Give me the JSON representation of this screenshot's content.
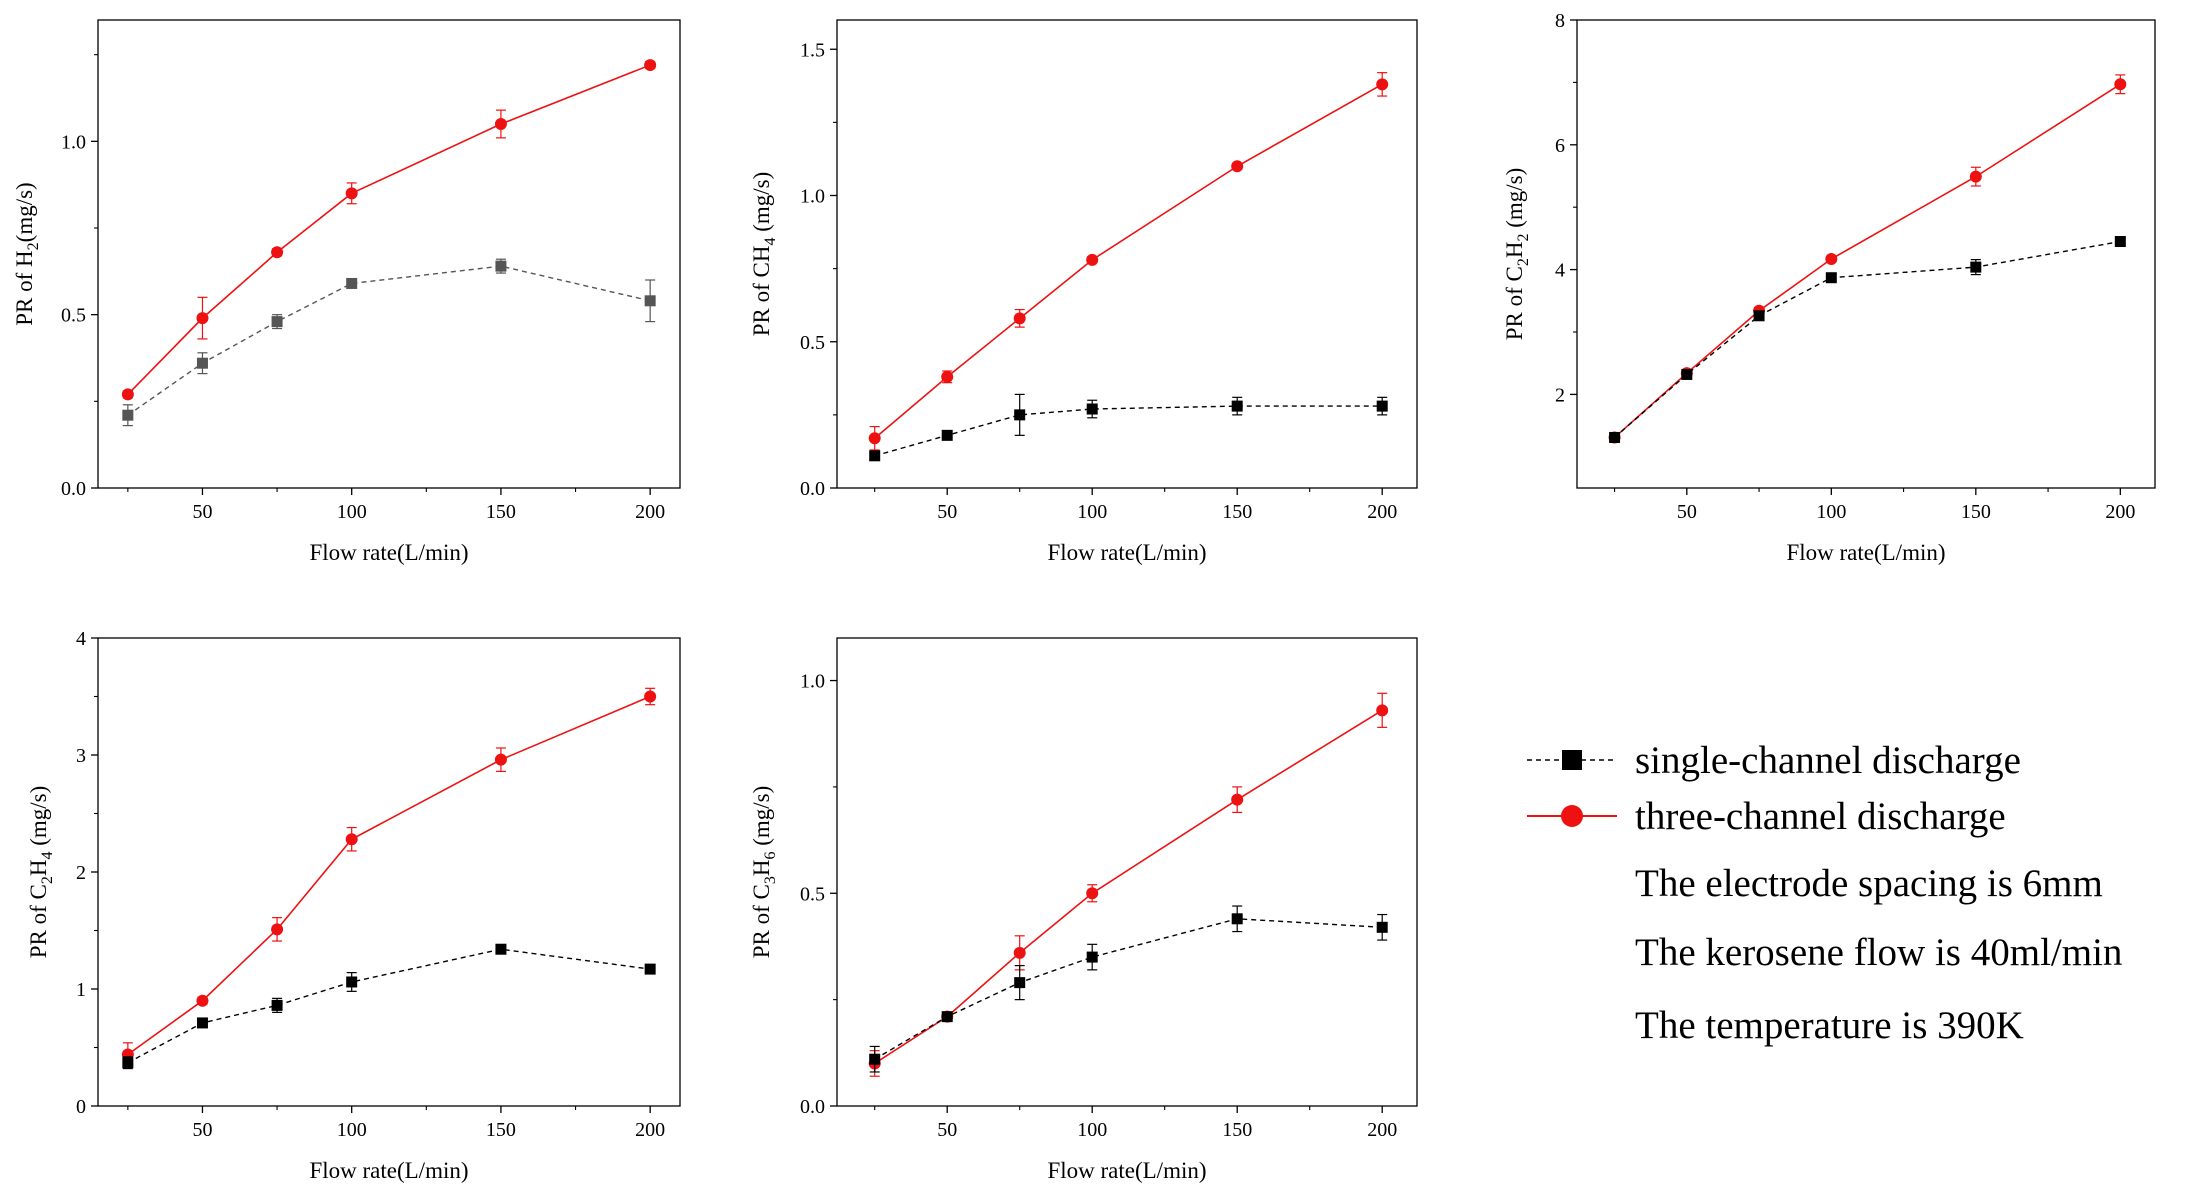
{
  "figure": {
    "legend": {
      "series": [
        {
          "name": "single-channel discharge",
          "color": "#000000",
          "marker": "square",
          "line": "dashed"
        },
        {
          "name": "three-channel discharge",
          "color": "#ee1111",
          "marker": "circle",
          "line": "solid"
        }
      ],
      "notes": [
        "The electrode spacing is 6mm",
        "The kerosene flow is 40ml/min",
        "The temperature is 390K"
      ]
    }
  },
  "chart_data": [
    {
      "type": "line",
      "title": "",
      "xlabel": "Flow rate(L/min)",
      "ylabel": "PR of H",
      "ylabel_sub": "2",
      "ylabel_tail": "(mg/s)",
      "x": [
        25,
        50,
        75,
        100,
        150,
        200
      ],
      "xlim": [
        15,
        210
      ],
      "ylim": [
        0.0,
        1.35
      ],
      "xticks": [
        50,
        100,
        150,
        200
      ],
      "yticks": [
        0.0,
        0.5,
        1.0
      ],
      "ytick_labels": [
        "0.0",
        "0.5",
        "1.0"
      ],
      "series": [
        {
          "name": "single-channel discharge",
          "values": [
            0.21,
            0.36,
            0.48,
            0.59,
            0.64,
            0.54
          ],
          "errors": [
            0.03,
            0.03,
            0.02,
            0.01,
            0.02,
            0.06
          ],
          "color": "#555555"
        },
        {
          "name": "three-channel discharge",
          "values": [
            0.27,
            0.49,
            0.68,
            0.85,
            1.05,
            1.22
          ],
          "errors": [
            0.01,
            0.06,
            0.01,
            0.03,
            0.04,
            0.01
          ],
          "color": "#ee1111"
        }
      ]
    },
    {
      "type": "line",
      "title": "",
      "xlabel": "Flow rate(L/min)",
      "ylabel": "PR of CH",
      "ylabel_sub": "4",
      "ylabel_tail": " (mg/s)",
      "x": [
        25,
        50,
        75,
        100,
        150,
        200
      ],
      "xlim": [
        12,
        212
      ],
      "ylim": [
        0.0,
        1.6
      ],
      "xticks": [
        50,
        100,
        150,
        200
      ],
      "yticks": [
        0.0,
        0.5,
        1.0,
        1.5
      ],
      "ytick_labels": [
        "0.0",
        "0.5",
        "1.0",
        "1.5"
      ],
      "series": [
        {
          "name": "single-channel discharge",
          "values": [
            0.11,
            0.18,
            0.25,
            0.27,
            0.28,
            0.28
          ],
          "errors": [
            0.01,
            0.01,
            0.07,
            0.03,
            0.03,
            0.03
          ],
          "color": "#000000"
        },
        {
          "name": "three-channel discharge",
          "values": [
            0.17,
            0.38,
            0.58,
            0.78,
            1.1,
            1.38
          ],
          "errors": [
            0.04,
            0.02,
            0.03,
            0.01,
            0.01,
            0.04
          ],
          "color": "#ee1111"
        }
      ]
    },
    {
      "type": "line",
      "title": "",
      "xlabel": "Flow rate(L/min)",
      "ylabel": "PR of C",
      "ylabel_sub": "2",
      "ylabel_mid": "H",
      "ylabel_sub2": "2",
      "ylabel_tail": "  (mg/s)",
      "x": [
        25,
        50,
        75,
        100,
        150,
        200
      ],
      "xlim": [
        12,
        212
      ],
      "ylim": [
        0.5,
        8.0
      ],
      "xticks": [
        50,
        100,
        150,
        200
      ],
      "yticks": [
        2,
        4,
        6,
        8
      ],
      "ytick_labels": [
        "2",
        "4",
        "6",
        "8"
      ],
      "series": [
        {
          "name": "single-channel discharge",
          "values": [
            1.31,
            2.32,
            3.26,
            3.87,
            4.04,
            4.45
          ],
          "errors": [
            0.03,
            0.04,
            0.06,
            0.05,
            0.12,
            0.05
          ],
          "color": "#000000"
        },
        {
          "name": "three-channel discharge",
          "values": [
            1.31,
            2.34,
            3.34,
            4.17,
            5.49,
            6.97
          ],
          "errors": [
            0.03,
            0.04,
            0.05,
            0.04,
            0.15,
            0.15
          ],
          "color": "#ee1111"
        }
      ]
    },
    {
      "type": "line",
      "title": "",
      "xlabel": "Flow rate(L/min)",
      "ylabel": "PR of C",
      "ylabel_sub": "2",
      "ylabel_mid": "H",
      "ylabel_sub2": "4",
      "ylabel_tail": " (mg/s)",
      "x": [
        25,
        50,
        75,
        100,
        150,
        200
      ],
      "xlim": [
        15,
        210
      ],
      "ylim": [
        0,
        4
      ],
      "xticks": [
        50,
        100,
        150,
        200
      ],
      "yticks": [
        0,
        1,
        2,
        3,
        4
      ],
      "ytick_labels": [
        "0",
        "1",
        "2",
        "3",
        "4"
      ],
      "series": [
        {
          "name": "single-channel discharge",
          "values": [
            0.37,
            0.71,
            0.86,
            1.06,
            1.34,
            1.17
          ],
          "errors": [
            0.05,
            0.03,
            0.06,
            0.08,
            0.03,
            0.03
          ],
          "color": "#000000"
        },
        {
          "name": "three-channel discharge",
          "values": [
            0.44,
            0.9,
            1.51,
            2.28,
            2.96,
            3.5
          ],
          "errors": [
            0.1,
            0.03,
            0.1,
            0.1,
            0.1,
            0.07
          ],
          "color": "#ee1111"
        }
      ]
    },
    {
      "type": "line",
      "title": "",
      "xlabel": "Flow rate(L/min)",
      "ylabel": "PR of C",
      "ylabel_sub": "3",
      "ylabel_mid": "H",
      "ylabel_sub2": "6",
      "ylabel_tail": " (mg/s)",
      "x": [
        25,
        50,
        75,
        100,
        150,
        200
      ],
      "xlim": [
        12,
        212
      ],
      "ylim": [
        0.0,
        1.1
      ],
      "xticks": [
        50,
        100,
        150,
        200
      ],
      "yticks": [
        0.0,
        0.5,
        1.0
      ],
      "ytick_labels": [
        "0.0",
        "0.5",
        "1.0"
      ],
      "series": [
        {
          "name": "single-channel discharge",
          "values": [
            0.11,
            0.21,
            0.29,
            0.35,
            0.44,
            0.42
          ],
          "errors": [
            0.03,
            0.01,
            0.04,
            0.03,
            0.03,
            0.03
          ],
          "color": "#000000"
        },
        {
          "name": "three-channel discharge",
          "values": [
            0.1,
            0.21,
            0.36,
            0.5,
            0.72,
            0.93
          ],
          "errors": [
            0.03,
            0.01,
            0.04,
            0.02,
            0.03,
            0.04
          ],
          "color": "#ee1111"
        }
      ]
    }
  ]
}
